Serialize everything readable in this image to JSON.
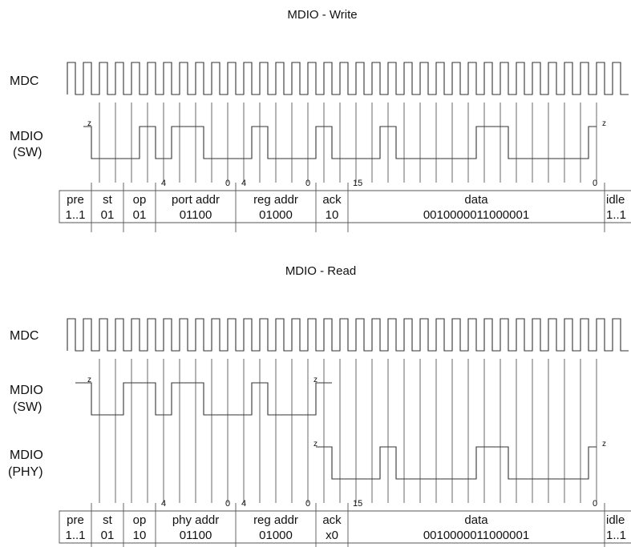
{
  "write": {
    "title": "MDIO - Write",
    "mdc_label": "MDC",
    "sw_label_1": "MDIO",
    "sw_label_2": "(SW)",
    "bit_numbers": [
      "4",
      "0",
      "4",
      "0",
      "15",
      "0"
    ],
    "z_labels": [
      "z",
      "z"
    ],
    "fields": [
      {
        "name": "pre",
        "value": "1..1"
      },
      {
        "name": "st",
        "value": "01"
      },
      {
        "name": "op",
        "value": "01"
      },
      {
        "name": "port addr",
        "value": "01100"
      },
      {
        "name": "reg addr",
        "value": "01000"
      },
      {
        "name": "ack",
        "value": "10"
      },
      {
        "name": "data",
        "value": "0010000011000001"
      },
      {
        "name": "idle",
        "value": "1..1"
      }
    ]
  },
  "read": {
    "title": "MDIO - Read",
    "mdc_label": "MDC",
    "sw_label_1": "MDIO",
    "sw_label_2": "(SW)",
    "phy_label_1": "MDIO",
    "phy_label_2": "(PHY)",
    "bit_numbers": [
      "4",
      "0",
      "4",
      "0",
      "15",
      "0"
    ],
    "z_labels": [
      "z",
      "z",
      "z",
      "z"
    ],
    "fields": [
      {
        "name": "pre",
        "value": "1..1"
      },
      {
        "name": "st",
        "value": "01"
      },
      {
        "name": "op",
        "value": "10"
      },
      {
        "name": "phy addr",
        "value": "01100"
      },
      {
        "name": "reg addr",
        "value": "01000"
      },
      {
        "name": "ack",
        "value": "x0"
      },
      {
        "name": "data",
        "value": "0010000011000001"
      },
      {
        "name": "idle",
        "value": "1..1"
      }
    ]
  }
}
